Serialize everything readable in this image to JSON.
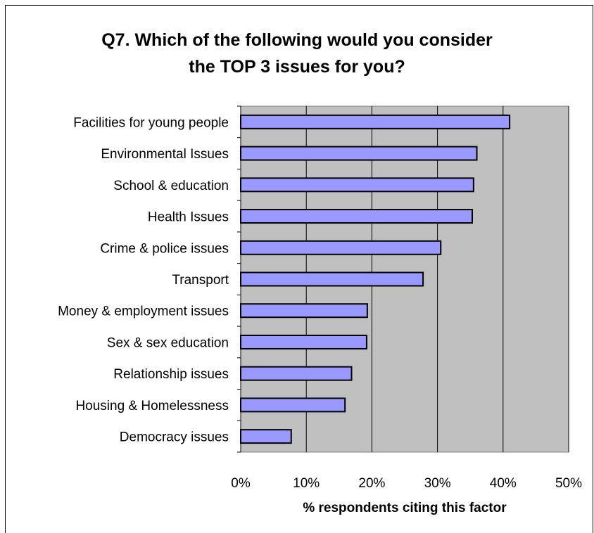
{
  "chart_data": {
    "type": "bar",
    "orientation": "horizontal",
    "title_line1": "Q7. Which of the following would you consider",
    "title_line2": "the TOP 3 issues for you?",
    "xlabel": "% respondents citing this factor",
    "ylabel": "",
    "categories": [
      "Facilities for young people",
      "Environmental Issues",
      "School & education",
      "Health Issues",
      "Crime & police issues",
      "Transport",
      "Money & employment issues",
      "Sex & sex education",
      "Relationship issues",
      "Housing & Homelessness",
      "Democracy issues"
    ],
    "values": [
      41,
      36,
      35.5,
      35.3,
      30.5,
      27.8,
      19.3,
      19.2,
      16.9,
      15.9,
      7.7
    ],
    "xlim": [
      0,
      50
    ],
    "ticks": [
      0,
      10,
      20,
      30,
      40,
      50
    ],
    "tick_labels": [
      "0%",
      "10%",
      "20%",
      "30%",
      "40%",
      "50%"
    ],
    "grid": true,
    "colors": {
      "bar_fill": "#9999ff",
      "bar_stroke": "#000000",
      "plot_background": "#c0c0c0",
      "gridline": "#000000"
    }
  }
}
